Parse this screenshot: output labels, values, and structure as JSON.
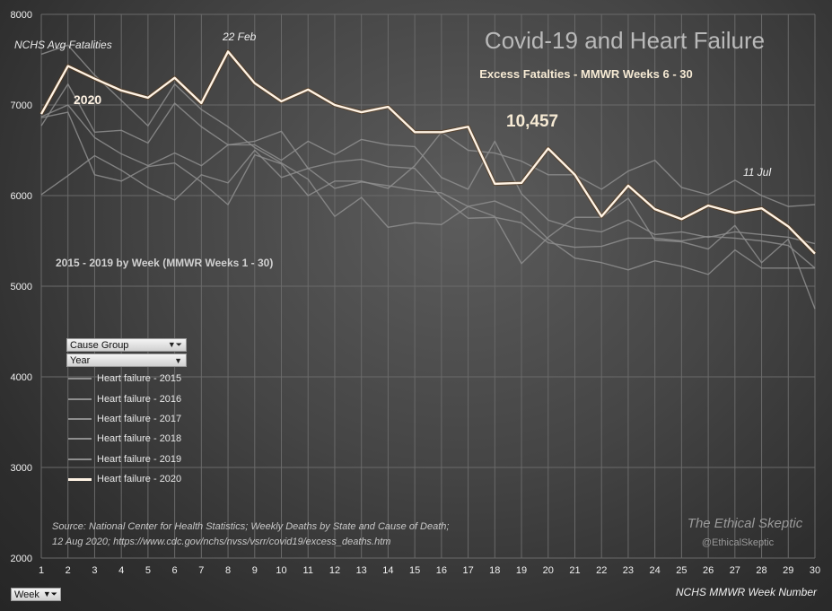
{
  "chart_data": {
    "type": "line",
    "title": "Covid-19 and Heart Failure",
    "subtitle": "Excess Fatalties - MMWR Weeks 6 - 30",
    "xlabel": "NCHS MMWR Week Number",
    "ylabel": "",
    "ylim": [
      2000,
      8000
    ],
    "yticks": [
      "2000",
      "3000",
      "4000",
      "5000",
      "6000",
      "7000",
      "8000"
    ],
    "x": [
      1,
      2,
      3,
      4,
      5,
      6,
      7,
      8,
      9,
      10,
      11,
      12,
      13,
      14,
      15,
      16,
      17,
      18,
      19,
      20,
      21,
      22,
      23,
      24,
      25,
      26,
      27,
      28,
      29,
      30
    ],
    "series": [
      {
        "name": "Heart failure - 2015",
        "values": [
          6770,
          7230,
          6700,
          6720,
          6580,
          7020,
          6760,
          6560,
          6560,
          6390,
          6600,
          6450,
          6620,
          6560,
          6540,
          6200,
          6070,
          6600,
          6020,
          5730,
          5640,
          5600,
          5730,
          5570,
          5600,
          5540,
          5600,
          5570,
          5540,
          5470
        ]
      },
      {
        "name": "Heart failure - 2016",
        "values": [
          6870,
          7000,
          6640,
          6460,
          6330,
          6470,
          6330,
          6560,
          6600,
          6710,
          6300,
          6370,
          6400,
          6320,
          6300,
          5980,
          5750,
          5760,
          5700,
          5480,
          5430,
          5440,
          5530,
          5530,
          5500,
          5550,
          5530,
          5500,
          5450,
          5200
        ]
      },
      {
        "name": "Heart failure - 2017",
        "values": [
          6010,
          6220,
          6440,
          6280,
          6090,
          5950,
          6230,
          6140,
          6500,
          6200,
          6300,
          6080,
          6150,
          6110,
          6060,
          6030,
          5880,
          5940,
          5810,
          5520,
          5310,
          5260,
          5180,
          5280,
          5220,
          5130,
          5400,
          5200,
          5200,
          5200
        ]
      },
      {
        "name": "Heart failure - 2018",
        "values": [
          7560,
          7660,
          7330,
          7050,
          6770,
          7230,
          6950,
          6760,
          6530,
          6360,
          6180,
          5770,
          5980,
          5650,
          5700,
          5680,
          5880,
          5770,
          5250,
          5540,
          5760,
          5760,
          5970,
          5510,
          5490,
          5410,
          5670,
          5260,
          5520,
          4750
        ]
      },
      {
        "name": "Heart failure - 2019",
        "values": [
          6860,
          6920,
          6230,
          6160,
          6320,
          6360,
          6150,
          5900,
          6450,
          6350,
          6000,
          6160,
          6160,
          6080,
          6330,
          6700,
          6500,
          6470,
          6380,
          6230,
          6230,
          6070,
          6270,
          6390,
          6090,
          6010,
          6170,
          6000,
          5880,
          5900
        ]
      },
      {
        "name": "Heart failure - 2020",
        "values": [
          6900,
          7430,
          7290,
          7160,
          7080,
          7300,
          7020,
          7590,
          7240,
          7040,
          7170,
          7000,
          6920,
          6980,
          6700,
          6700,
          6760,
          6130,
          6140,
          6520,
          6230,
          5770,
          6110,
          5850,
          5740,
          5890,
          5810,
          5860,
          5660,
          5360
        ]
      }
    ],
    "series_colors": [
      "#8e8e8e",
      "#8e8e8e",
      "#8e8e8e",
      "#8e8e8e",
      "#8e8e8e",
      "#fff3e4"
    ],
    "annotations": [
      {
        "text": "NCHS Avg Fatalities"
      },
      {
        "text": "2020"
      },
      {
        "text": "22 Feb"
      },
      {
        "text": "10,457"
      },
      {
        "text": "11 Jul"
      },
      {
        "text": "2015  - 2019  by Week (MMWR Weeks 1 - 30)"
      }
    ],
    "source_line1": "Source:  National Center for Health Statistics;  Weekly Deaths by State and Cause of Death;",
    "source_line2": "12 Aug 2020; https://www.cdc.gov/nchs/nvss/vsrr/covid19/excess_deaths.htm",
    "watermark": "The Ethical Skeptic",
    "watermark_handle": "@EthicalSkeptic",
    "grid": true,
    "legend_position": "left-center"
  },
  "pivot": {
    "cause_group_label": "Cause Group",
    "year_label": "Year",
    "week_label": "Week"
  }
}
